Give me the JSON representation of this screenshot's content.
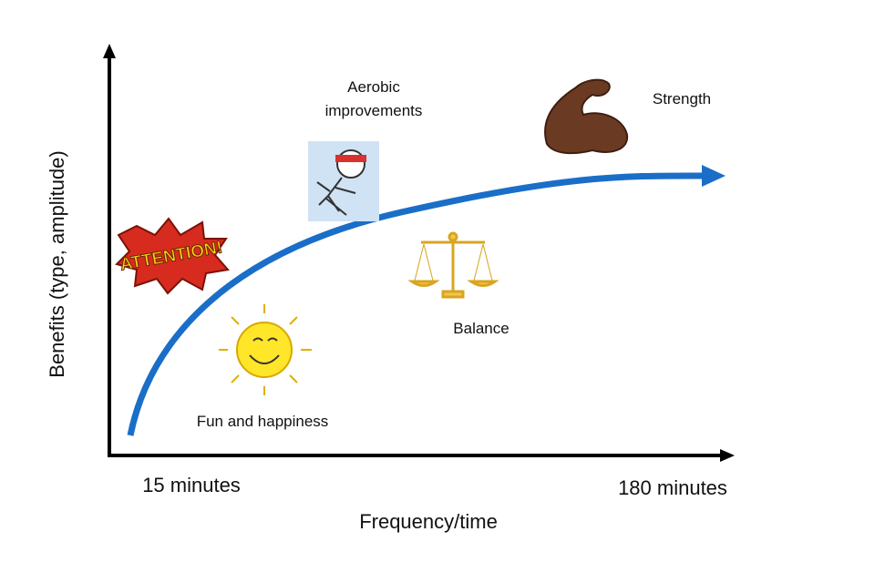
{
  "axes": {
    "x_label": "Frequency/time",
    "y_label": "Benefits (type, amplitude)",
    "x_start": "15 minutes",
    "x_end": "180 minutes"
  },
  "nodes": [
    {
      "label": [
        "Aerobic",
        "improvements"
      ]
    },
    {
      "label": [
        "Strength"
      ]
    },
    {
      "label": [
        "Balance"
      ]
    },
    {
      "label": [
        "Fun and happiness"
      ]
    }
  ],
  "badge": "ATTENTION!"
}
